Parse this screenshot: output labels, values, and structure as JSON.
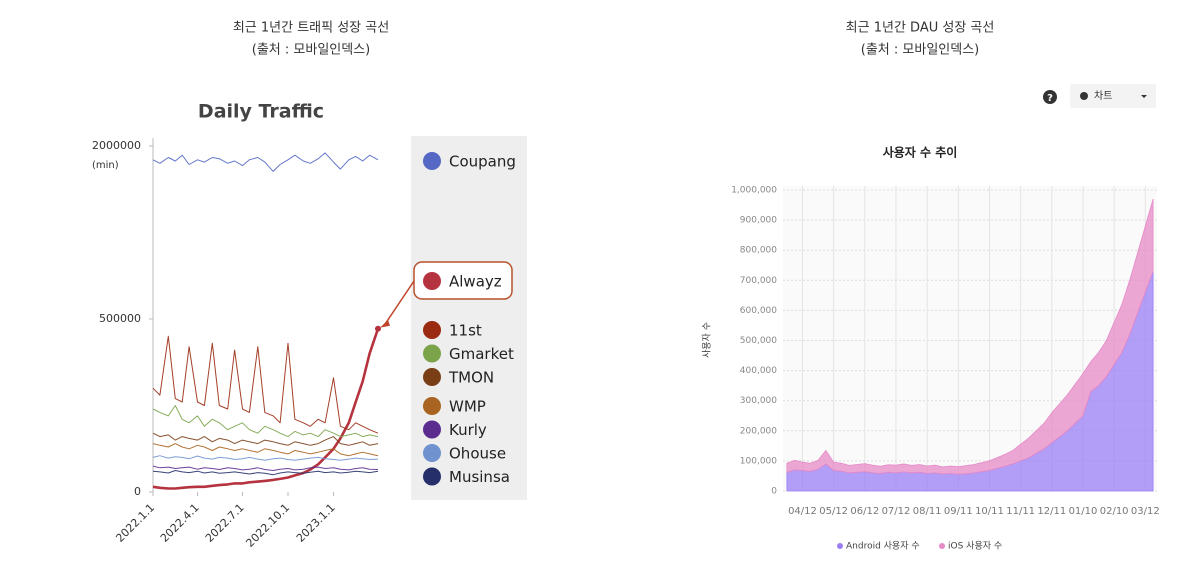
{
  "captions": [
    {
      "line1": "최근 1년간 트래픽 성장 곡선",
      "line2": "(출처 : 모바일인덱스)"
    },
    {
      "line1": "최근 1년간 DAU 성장 곡선",
      "line2": "(출처 : 모바일인덱스)"
    }
  ],
  "controls": {
    "help": "?",
    "view": "차트"
  },
  "chart_data": [
    {
      "type": "line",
      "title": "Daily Traffic",
      "y_unit": "(min)",
      "y_scale": "broken",
      "ylim": [
        0,
        2000000
      ],
      "yticks": [
        0,
        500000,
        2000000
      ],
      "xlim": [
        "2022.1.1",
        "2023.4.1"
      ],
      "xticks": [
        "2022.1.1",
        "2022.4.1",
        "2022.7.1",
        "2022.10.1",
        "2023.1.1"
      ],
      "highlight": "Alwayz",
      "x": [
        "2022.1.1",
        "2022.1.15",
        "2022.2.1",
        "2022.2.15",
        "2022.3.1",
        "2022.3.15",
        "2022.4.1",
        "2022.4.15",
        "2022.5.1",
        "2022.5.15",
        "2022.6.1",
        "2022.6.15",
        "2022.7.1",
        "2022.7.15",
        "2022.8.1",
        "2022.8.15",
        "2022.9.1",
        "2022.9.15",
        "2022.10.1",
        "2022.10.15",
        "2022.11.1",
        "2022.11.15",
        "2022.12.1",
        "2022.12.15",
        "2023.1.1",
        "2023.1.15",
        "2023.2.1",
        "2023.2.15",
        "2023.3.1",
        "2023.3.15",
        "2023.4.1"
      ],
      "series": [
        {
          "name": "Coupang",
          "color": "#5468c4",
          "values": [
            1880000,
            1850000,
            1900000,
            1870000,
            1920000,
            1840000,
            1880000,
            1860000,
            1900000,
            1890000,
            1850000,
            1870000,
            1830000,
            1880000,
            1900000,
            1860000,
            1780000,
            1840000,
            1880000,
            1920000,
            1870000,
            1850000,
            1890000,
            1940000,
            1860000,
            1800000,
            1880000,
            1910000,
            1870000,
            1920000,
            1880000
          ]
        },
        {
          "name": "Alwayz",
          "color": "#b5333e",
          "values": [
            15000,
            12000,
            10000,
            10000,
            12000,
            14000,
            15000,
            15000,
            18000,
            20000,
            22000,
            25000,
            25000,
            28000,
            30000,
            32000,
            35000,
            38000,
            42000,
            48000,
            55000,
            65000,
            80000,
            100000,
            125000,
            155000,
            200000,
            260000,
            320000,
            400000,
            472000
          ]
        },
        {
          "name": "11st",
          "color": "#9a2a10",
          "values": [
            300000,
            280000,
            450000,
            270000,
            260000,
            420000,
            260000,
            250000,
            430000,
            250000,
            240000,
            410000,
            240000,
            230000,
            420000,
            230000,
            220000,
            200000,
            430000,
            210000,
            200000,
            190000,
            210000,
            200000,
            330000,
            190000,
            180000,
            200000,
            190000,
            180000,
            170000
          ]
        },
        {
          "name": "Gmarket",
          "color": "#7aa34a",
          "values": [
            240000,
            230000,
            220000,
            250000,
            210000,
            200000,
            220000,
            190000,
            210000,
            200000,
            180000,
            190000,
            200000,
            180000,
            170000,
            190000,
            180000,
            170000,
            160000,
            175000,
            165000,
            170000,
            160000,
            180000,
            170000,
            160000,
            165000,
            170000,
            160000,
            165000,
            160000
          ]
        },
        {
          "name": "TMON",
          "color": "#7a3e17",
          "values": [
            170000,
            160000,
            165000,
            150000,
            160000,
            155000,
            150000,
            160000,
            145000,
            155000,
            150000,
            140000,
            150000,
            145000,
            140000,
            150000,
            145000,
            140000,
            135000,
            145000,
            140000,
            135000,
            140000,
            150000,
            160000,
            140000,
            135000,
            140000,
            145000,
            135000,
            140000
          ]
        },
        {
          "name": "WMP",
          "color": "#a86420",
          "values": [
            140000,
            135000,
            130000,
            140000,
            130000,
            125000,
            135000,
            130000,
            120000,
            130000,
            125000,
            120000,
            125000,
            120000,
            115000,
            125000,
            120000,
            115000,
            110000,
            120000,
            115000,
            110000,
            115000,
            120000,
            125000,
            110000,
            105000,
            110000,
            115000,
            110000,
            105000
          ]
        },
        {
          "name": "Kurly",
          "color": "#5b2d8e",
          "values": [
            75000,
            70000,
            72000,
            68000,
            70000,
            72000,
            66000,
            70000,
            68000,
            65000,
            70000,
            68000,
            64000,
            66000,
            70000,
            65000,
            62000,
            66000,
            68000,
            64000,
            66000,
            70000,
            72000,
            68000,
            70000,
            66000,
            64000,
            68000,
            70000,
            66000,
            65000
          ]
        },
        {
          "name": "Ohouse",
          "color": "#7093cf",
          "values": [
            100000,
            105000,
            98000,
            102000,
            100000,
            96000,
            104000,
            98000,
            95000,
            100000,
            98000,
            94000,
            96000,
            100000,
            95000,
            92000,
            96000,
            98000,
            94000,
            92000,
            95000,
            98000,
            100000,
            96000,
            94000,
            92000,
            95000,
            98000,
            96000,
            94000,
            95000
          ]
        },
        {
          "name": "Musinsa",
          "color": "#25306a",
          "values": [
            60000,
            58000,
            55000,
            62000,
            58000,
            56000,
            60000,
            55000,
            58000,
            54000,
            56000,
            58000,
            55000,
            52000,
            56000,
            54000,
            50000,
            55000,
            58000,
            56000,
            54000,
            57000,
            60000,
            56000,
            58000,
            55000,
            57000,
            60000,
            58000,
            56000,
            60000
          ]
        }
      ]
    },
    {
      "type": "area",
      "stacked": true,
      "title": "사용자 수 추이",
      "y_label": "사용자 수",
      "grid": true,
      "ylim": [
        0,
        1000000
      ],
      "yticks": [
        0,
        {
          "value": 100000,
          "label": "100,000"
        },
        {
          "value": 200000,
          "label": "200,000"
        },
        {
          "value": 300000,
          "label": "300,000"
        },
        {
          "value": 400000,
          "label": "400,000"
        },
        {
          "value": 500000,
          "label": "500,000"
        },
        {
          "value": 600000,
          "label": "600,000"
        },
        {
          "value": 700000,
          "label": "700,000"
        },
        {
          "value": 800000,
          "label": "800,000"
        },
        {
          "value": 900000,
          "label": "900,000"
        },
        {
          "value": 1000000,
          "label": "1,000,000"
        }
      ],
      "categories": [
        null,
        null,
        "04/12",
        null,
        null,
        null,
        "05/12",
        null,
        null,
        null,
        "06/12",
        null,
        null,
        null,
        "07/12",
        null,
        null,
        null,
        "08/11",
        null,
        null,
        null,
        "09/11",
        null,
        null,
        null,
        "10/11",
        null,
        null,
        null,
        "11/11",
        null,
        null,
        null,
        "12/11",
        null,
        null,
        null,
        "01/10",
        null,
        null,
        null,
        "02/10",
        null,
        null,
        null,
        "03/12",
        null
      ],
      "series": [
        {
          "name": "Android 사용자 수",
          "color": "#9a7df5",
          "values": [
            62000,
            70000,
            68000,
            65000,
            72000,
            90000,
            68000,
            66000,
            60000,
            62000,
            64000,
            60000,
            58000,
            62000,
            60000,
            63000,
            60000,
            62000,
            58000,
            60000,
            56000,
            58000,
            55000,
            57000,
            60000,
            64000,
            68000,
            75000,
            82000,
            90000,
            100000,
            110000,
            125000,
            140000,
            160000,
            180000,
            200000,
            225000,
            250000,
            330000,
            350000,
            380000,
            420000,
            460000,
            520000,
            590000,
            660000,
            730000
          ]
        },
        {
          "name": "iOS 사용자 수",
          "color": "#e58ac7",
          "values": [
            30000,
            32000,
            28000,
            27000,
            30000,
            45000,
            28000,
            26000,
            25000,
            26000,
            27000,
            26000,
            24000,
            25000,
            26000,
            27000,
            25000,
            26000,
            25000,
            26000,
            24000,
            25000,
            26000,
            27000,
            28000,
            30000,
            33000,
            36000,
            40000,
            45000,
            55000,
            65000,
            75000,
            85000,
            100000,
            110000,
            120000,
            130000,
            140000,
            100000,
            110000,
            120000,
            140000,
            160000,
            180000,
            200000,
            220000,
            240000
          ]
        }
      ]
    }
  ]
}
